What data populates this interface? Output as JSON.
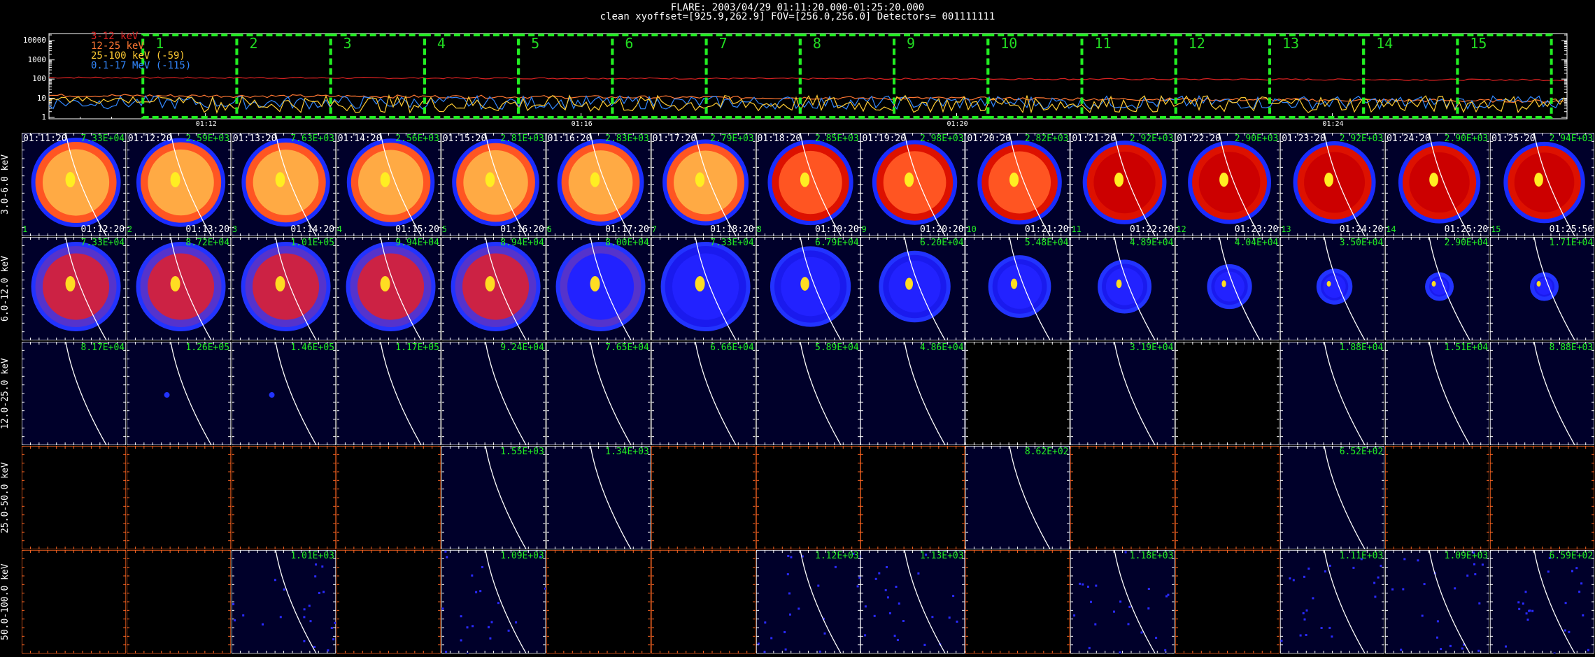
{
  "header": {
    "line1": "FLARE: 2003/04/29 01:11:20.000-01:25:20.000",
    "line2": "clean    xyoffset=[925.9,262.9]    FOV=[256.0,256.0]    Detectors= 001111111"
  },
  "lightcurve": {
    "legend": [
      {
        "label": "3-12 keV",
        "color": "#dd2222"
      },
      {
        "label": "12-25 keV",
        "color": "#ff7733"
      },
      {
        "label": "25-100 keV (-59)",
        "color": "#ffcc33"
      },
      {
        "label": "0.1-17 MeV (-115)",
        "color": "#3388ff"
      }
    ],
    "yticks": [
      "10000",
      "1000",
      "100",
      "10",
      "1"
    ],
    "xticks": [
      "01:12",
      "01:16",
      "01:20",
      "01:24"
    ],
    "window_labels": [
      "1",
      "2",
      "3",
      "4",
      "5",
      "6",
      "7",
      "8",
      "9",
      "10",
      "11",
      "12",
      "13",
      "14",
      "15"
    ],
    "window_color": "#22ee22",
    "series_levels": {
      "3-12 keV": 120,
      "12-25 keV": 14,
      "25-100 keV": 5,
      "0.1-17 MeV": 6
    }
  },
  "row_labels": [
    "3.0-6.0 keV",
    "6.0-12.0 keV",
    "12.0-25.0 keV",
    "25.0-50.0 keV",
    "50.0-100.0 keV"
  ],
  "start_times": [
    "01:11:20",
    "01:12:20",
    "01:13:20",
    "01:14:20",
    "01:15:20",
    "01:16:20",
    "01:17:20",
    "01:18:20",
    "01:19:20",
    "01:20:20",
    "01:21:20",
    "01:22:20",
    "01:23:20",
    "01:24:20",
    "01:25:20"
  ],
  "end_times": [
    "01:12:20",
    "01:13:20",
    "01:14:20",
    "01:15:20",
    "01:16:20",
    "01:17:20",
    "01:18:20",
    "01:19:20",
    "01:20:20",
    "01:21:20",
    "01:22:20",
    "01:23:20",
    "01:24:20",
    "01:25:20",
    "01:25:56"
  ],
  "panel_numbers": [
    "1",
    "2",
    "3",
    "4",
    "5",
    "6",
    "7",
    "8",
    "9",
    "10",
    "11",
    "12",
    "13",
    "14",
    "15"
  ],
  "peaks": [
    [
      "7.33E+04",
      "2.59E+03",
      "7.63E+03",
      "2.56E+03",
      "2.81E+03",
      "2.83E+03",
      "2.79E+03",
      "2.85E+03",
      "2.98E+03",
      "2.82E+03",
      "2.92E+03",
      "2.90E+03",
      "2.92E+03",
      "2.90E+03",
      "2.94E+03"
    ],
    [
      "7.33E+04",
      "8.72E+04",
      "1.01E+05",
      "9.94E+04",
      "8.94E+04",
      "8.00E+04",
      "7.33E+04",
      "6.79E+04",
      "6.20E+04",
      "5.48E+04",
      "4.89E+04",
      "4.04E+04",
      "3.50E+04",
      "2.90E+04",
      "1.71E+04"
    ],
    [
      "8.17E+04",
      "1.26E+05",
      "1.46E+05",
      "1.17E+05",
      "9.24E+04",
      "7.65E+04",
      "6.66E+04",
      "5.89E+04",
      "4.86E+04",
      "",
      "3.19E+04",
      "",
      "1.88E+04",
      "1.51E+04",
      "8.88E+03"
    ],
    [
      "",
      "",
      "",
      "",
      "1.55E+03",
      "1.34E+03",
      "",
      "",
      "",
      "8.62E+02",
      "",
      "",
      "6.52E+02",
      "",
      ""
    ],
    [
      "",
      "",
      "1.01E+03",
      "",
      "1.09E+03",
      "",
      "",
      "1.12E+03",
      "1.13E+03",
      "",
      "1.18E+03",
      "",
      "1.11E+03",
      "1.09E+03",
      "6.59E+02"
    ]
  ],
  "images_present": [
    [
      1,
      1,
      1,
      1,
      1,
      1,
      1,
      1,
      1,
      1,
      1,
      1,
      1,
      1,
      1
    ],
    [
      1,
      1,
      1,
      1,
      1,
      1,
      1,
      1,
      1,
      1,
      1,
      1,
      1,
      1,
      1
    ],
    [
      1,
      1,
      1,
      1,
      1,
      1,
      1,
      1,
      1,
      0,
      1,
      0,
      1,
      1,
      1
    ],
    [
      0,
      0,
      0,
      0,
      1,
      1,
      0,
      0,
      0,
      1,
      0,
      0,
      1,
      0,
      0
    ],
    [
      0,
      0,
      1,
      0,
      1,
      0,
      0,
      1,
      1,
      0,
      1,
      0,
      1,
      1,
      1
    ]
  ]
}
